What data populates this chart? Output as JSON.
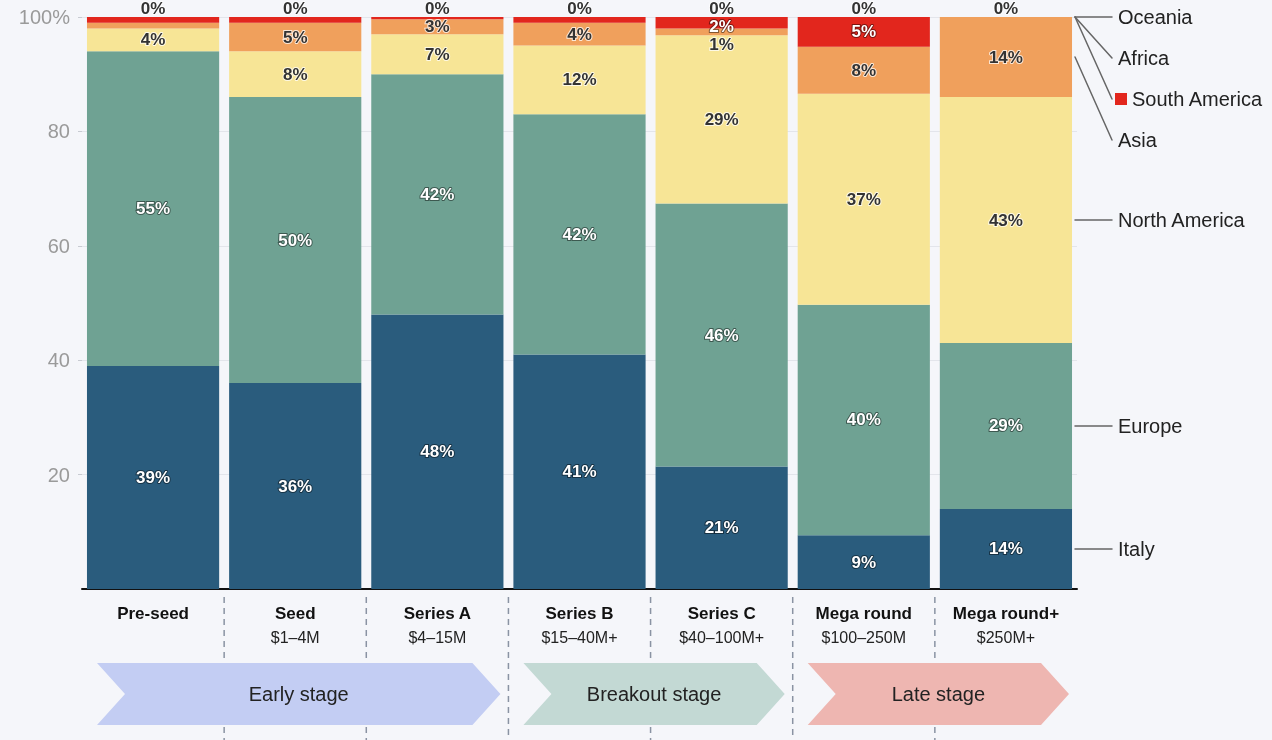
{
  "chart_data": {
    "type": "bar",
    "stacked": true,
    "categories": [
      "Pre-seed",
      "Seed\n$1–4M",
      "Series A\n$4–15M",
      "Series B\n$15–40M+",
      "Series C\n$40–100M+",
      "Mega round\n$100–250M",
      "Mega round+\n$250M+"
    ],
    "series": [
      {
        "name": "Italy",
        "color": "#2a5c7d",
        "values": [
          39,
          36,
          48,
          41,
          21.4,
          9.4,
          14
        ],
        "value_labels": [
          "39%",
          "36%",
          "48%",
          "41%",
          "21%",
          "9%",
          "14%"
        ]
      },
      {
        "name": "Europe",
        "color": "#6fa293",
        "values": [
          55,
          50,
          42,
          42,
          46,
          40.3,
          29
        ],
        "value_labels": [
          "55%",
          "50%",
          "42%",
          "42%",
          "46%",
          "40%",
          "29%"
        ]
      },
      {
        "name": "North America",
        "color": "#f7e596",
        "values": [
          4,
          8,
          7,
          12,
          29.4,
          36.9,
          43
        ],
        "value_labels": [
          "4%",
          "8%",
          "7%",
          "12%",
          "29%",
          "37%",
          "43%"
        ]
      },
      {
        "name": "Asia",
        "color": "#f0a05c",
        "values": [
          1,
          5,
          2.6,
          4,
          1.2,
          8.2,
          14
        ],
        "value_labels": [
          null,
          "5%",
          "3%",
          "4%",
          "1%",
          "8%",
          "14%"
        ]
      },
      {
        "name": "South America",
        "color": "#e2261d",
        "values": [
          1,
          1,
          0.4,
          1,
          2,
          5.2,
          0
        ],
        "value_labels": [
          null,
          null,
          null,
          null,
          "2%",
          "5%",
          null
        ]
      },
      {
        "name": "Africa",
        "values": [
          0,
          0,
          0,
          0,
          0,
          0,
          0
        ],
        "value_labels": [
          null,
          null,
          null,
          null,
          null,
          null,
          null
        ]
      },
      {
        "name": "Oceania",
        "values": [
          0,
          0,
          0,
          0,
          0,
          0,
          0
        ],
        "value_labels": [
          "0%",
          "0%",
          "0%",
          "0%",
          "0%",
          "0%",
          "0%"
        ]
      }
    ],
    "ylim": [
      0,
      100
    ],
    "yticks": [
      20,
      40,
      60,
      80,
      {
        "value": 100,
        "label": "100%"
      }
    ],
    "grid": "y",
    "legend": "right",
    "annotations": [
      "Early stage",
      "Breakout stage",
      "Late stage"
    ]
  }
}
